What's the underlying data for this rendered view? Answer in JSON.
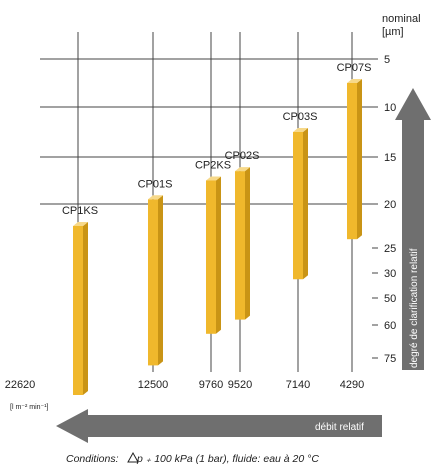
{
  "chart_data": {
    "type": "bar",
    "series": [
      {
        "category": "22620",
        "label": "CP1KS",
        "top": 22.5,
        "bottom": 95
      },
      {
        "category": "12500",
        "label": "CP01S",
        "top": 19.5,
        "bottom": 79
      },
      {
        "category": "9760",
        "label": "CP2KS",
        "top": 17.5,
        "bottom": 64
      },
      {
        "category": "9520",
        "label": "CP02S",
        "top": 16.5,
        "bottom": 58
      },
      {
        "category": "7140",
        "label": "CP03S",
        "top": 12.5,
        "bottom": 35
      },
      {
        "category": "4290",
        "label": "CP07S",
        "top": 7.5,
        "bottom": 24
      }
    ],
    "y_ticks": [
      "5",
      "10",
      "15",
      "20",
      "25",
      "30",
      "50",
      "60",
      "75"
    ],
    "y_unit": "nominal\n[µm]",
    "ylabel": "degré de clarification relatif",
    "xlabel": "débit relatif",
    "x_unit": "[l m⁻² min⁻¹]",
    "conditions": {
      "prefix": "Conditions:",
      "rest": " p ₊ 100 kPa (1 bar), fluide: eau à 20 °C"
    },
    "colors": {
      "bar_front": "#f0b82c",
      "bar_side": "#c99415",
      "bar_top": "#f7d98a",
      "arrow": "#6f6f6f",
      "grid": "#444444"
    }
  }
}
